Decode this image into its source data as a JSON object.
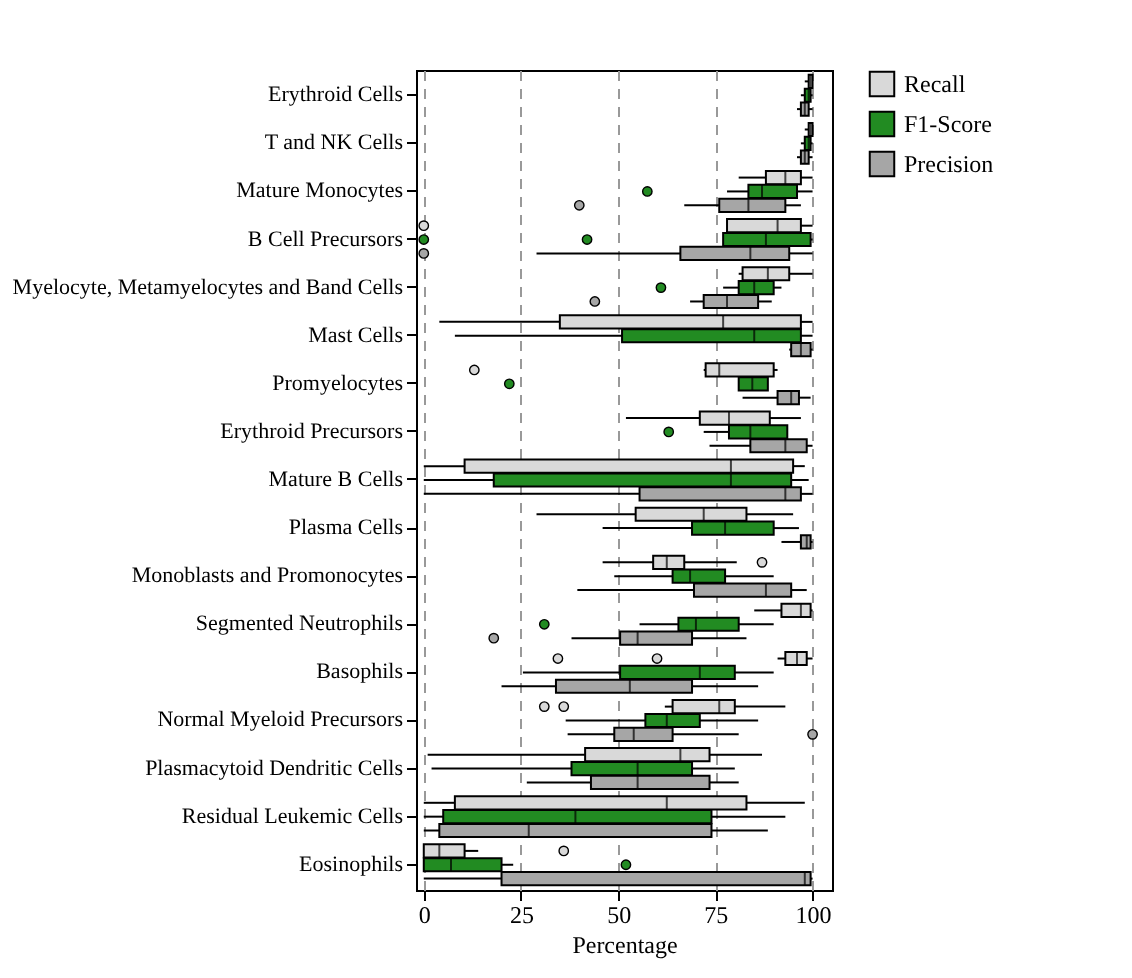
{
  "chart_data": {
    "type": "box",
    "orientation": "horizontal",
    "xlabel": "Percentage",
    "xlim": [
      -2,
      105
    ],
    "xticks": [
      0,
      25,
      50,
      75,
      100
    ],
    "grid": "x",
    "line_style": "dashed",
    "legend": "right",
    "categories": [
      "Erythroid Cells",
      "T and NK Cells",
      "Mature Monocytes",
      "B Cell Precursors",
      "Myelocyte, Metamyelocytes and Band Cells",
      "Mast Cells",
      "Promyelocytes",
      "Erythroid Precursors",
      "Mature B Cells",
      "Plasma Cells",
      "Monoblasts and Promonocytes",
      "Segmented Neutrophils",
      "Basophils",
      "Normal Myeloid Precursors",
      "Plasmacytoid Dendritic Cells",
      "Residual Leukemic Cells",
      "Eosinophils"
    ],
    "series": [
      {
        "name": "Recall",
        "color": "#d9d9d9",
        "boxes": [
          {
            "low": 98,
            "q1": 99,
            "median": 99.5,
            "q3": 100,
            "high": 100
          },
          {
            "low": 98,
            "q1": 99,
            "median": 99.5,
            "q3": 100,
            "high": 100
          },
          {
            "low": 81,
            "q1": 88,
            "median": 93,
            "q3": 97,
            "high": 100
          },
          {
            "low": 78,
            "q1": 78,
            "median": 91,
            "q3": 97,
            "high": 100,
            "outliers": [
              0
            ]
          },
          {
            "low": 81,
            "q1": 82,
            "median": 88.5,
            "q3": 94,
            "high": 100
          },
          {
            "low": 4,
            "q1": 35,
            "median": 77,
            "q3": 97,
            "high": 100
          },
          {
            "low": 72,
            "q1": 72.5,
            "median": 76,
            "q3": 90,
            "high": 91,
            "outliers": [
              13
            ]
          },
          {
            "low": 52,
            "q1": 71,
            "median": 78.5,
            "q3": 89,
            "high": 97
          },
          {
            "low": 0,
            "q1": 10.5,
            "median": 79,
            "q3": 95,
            "high": 98
          },
          {
            "low": 29,
            "q1": 54.5,
            "median": 72,
            "q3": 83,
            "high": 95
          },
          {
            "low": 46,
            "q1": 59,
            "median": 62.5,
            "q3": 67,
            "high": 80.5,
            "outliers": [
              87
            ]
          },
          {
            "low": 85,
            "q1": 92,
            "median": 97,
            "q3": 99.5,
            "high": 100
          },
          {
            "low": 91,
            "q1": 93,
            "median": 96,
            "q3": 98.5,
            "high": 100,
            "outliers": [
              34.5,
              60
            ]
          },
          {
            "low": 62,
            "q1": 64,
            "median": 76,
            "q3": 80,
            "high": 93,
            "outliers": [
              31,
              36
            ]
          },
          {
            "low": 1,
            "q1": 41.5,
            "median": 66,
            "q3": 73.5,
            "high": 87
          },
          {
            "low": 0,
            "q1": 8,
            "median": 62.5,
            "q3": 83,
            "high": 98
          },
          {
            "low": 0,
            "q1": 0,
            "median": 4,
            "q3": 10.5,
            "high": 14,
            "outliers": [
              36
            ]
          }
        ]
      },
      {
        "name": "F1-Score",
        "color": "#228b22",
        "boxes": [
          {
            "low": 97,
            "q1": 98,
            "median": 99,
            "q3": 99.5,
            "high": 100
          },
          {
            "low": 97,
            "q1": 98,
            "median": 99,
            "q3": 99.5,
            "high": 100
          },
          {
            "low": 78,
            "q1": 83.5,
            "median": 87,
            "q3": 96,
            "high": 100,
            "outliers": [
              57.5
            ]
          },
          {
            "low": 77,
            "q1": 77,
            "median": 88,
            "q3": 99.5,
            "high": 100,
            "outliers": [
              0,
              42
            ]
          },
          {
            "low": 77,
            "q1": 81,
            "median": 85,
            "q3": 90,
            "high": 92,
            "outliers": [
              61
            ]
          },
          {
            "low": 8,
            "q1": 51,
            "median": 85,
            "q3": 97,
            "high": 100
          },
          {
            "low": 81,
            "q1": 81,
            "median": 84.5,
            "q3": 88.5,
            "high": 88.5,
            "outliers": [
              22
            ]
          },
          {
            "low": 72,
            "q1": 78.5,
            "median": 84,
            "q3": 93.5,
            "high": 93.5,
            "outliers": [
              63
            ]
          },
          {
            "low": 0,
            "q1": 18,
            "median": 79,
            "q3": 94.5,
            "high": 99
          },
          {
            "low": 46,
            "q1": 69,
            "median": 77.5,
            "q3": 90,
            "high": 96.5
          },
          {
            "low": 49,
            "q1": 64,
            "median": 68.5,
            "q3": 77.5,
            "high": 90
          },
          {
            "low": 55.5,
            "q1": 65.5,
            "median": 70,
            "q3": 81,
            "high": 90,
            "outliers": [
              31
            ]
          },
          {
            "low": 25.5,
            "q1": 50.5,
            "median": 71,
            "q3": 80,
            "high": 90
          },
          {
            "low": 36.5,
            "q1": 57,
            "median": 62.5,
            "q3": 71,
            "high": 86
          },
          {
            "low": 2,
            "q1": 38,
            "median": 55,
            "q3": 69,
            "high": 80
          },
          {
            "low": 0,
            "q1": 5,
            "median": 39,
            "q3": 74,
            "high": 93
          },
          {
            "low": 0,
            "q1": 0,
            "median": 7,
            "q3": 20,
            "high": 23,
            "outliers": [
              52
            ]
          }
        ]
      },
      {
        "name": "Precision",
        "color": "#a6a6a6",
        "boxes": [
          {
            "low": 96,
            "q1": 97,
            "median": 98,
            "q3": 99,
            "high": 100
          },
          {
            "low": 96,
            "q1": 97,
            "median": 98,
            "q3": 99,
            "high": 100
          },
          {
            "low": 67,
            "q1": 76,
            "median": 83.5,
            "q3": 93,
            "high": 97,
            "outliers": [
              40
            ]
          },
          {
            "low": 29,
            "q1": 66,
            "median": 84,
            "q3": 94,
            "high": 100,
            "outliers": [
              0
            ]
          },
          {
            "low": 68.5,
            "q1": 72,
            "median": 78,
            "q3": 86,
            "high": 89.5,
            "outliers": [
              44
            ]
          },
          {
            "low": 94,
            "q1": 94.5,
            "median": 97,
            "q3": 99.5,
            "high": 100
          },
          {
            "low": 82,
            "q1": 91,
            "median": 94.5,
            "q3": 96.5,
            "high": 99.5
          },
          {
            "low": 73.5,
            "q1": 84,
            "median": 93,
            "q3": 98.5,
            "high": 100
          },
          {
            "low": 0,
            "q1": 55.5,
            "median": 93,
            "q3": 97,
            "high": 100
          },
          {
            "low": 92,
            "q1": 97,
            "median": 98.5,
            "q3": 99.5,
            "high": 100
          },
          {
            "low": 39.5,
            "q1": 69.5,
            "median": 88,
            "q3": 94.5,
            "high": 98.5
          },
          {
            "low": 38,
            "q1": 50.5,
            "median": 55,
            "q3": 69,
            "high": 83,
            "outliers": [
              18
            ]
          },
          {
            "low": 20,
            "q1": 34,
            "median": 53,
            "q3": 69,
            "high": 86
          },
          {
            "low": 37,
            "q1": 49,
            "median": 54,
            "q3": 64,
            "high": 81,
            "outliers": [
              100
            ]
          },
          {
            "low": 26.5,
            "q1": 43,
            "median": 55,
            "q3": 73.5,
            "high": 81
          },
          {
            "low": 0,
            "q1": 4,
            "median": 27,
            "q3": 74,
            "high": 88.5
          },
          {
            "low": 0,
            "q1": 20,
            "median": 98,
            "q3": 99.5,
            "high": 100
          }
        ]
      }
    ]
  }
}
